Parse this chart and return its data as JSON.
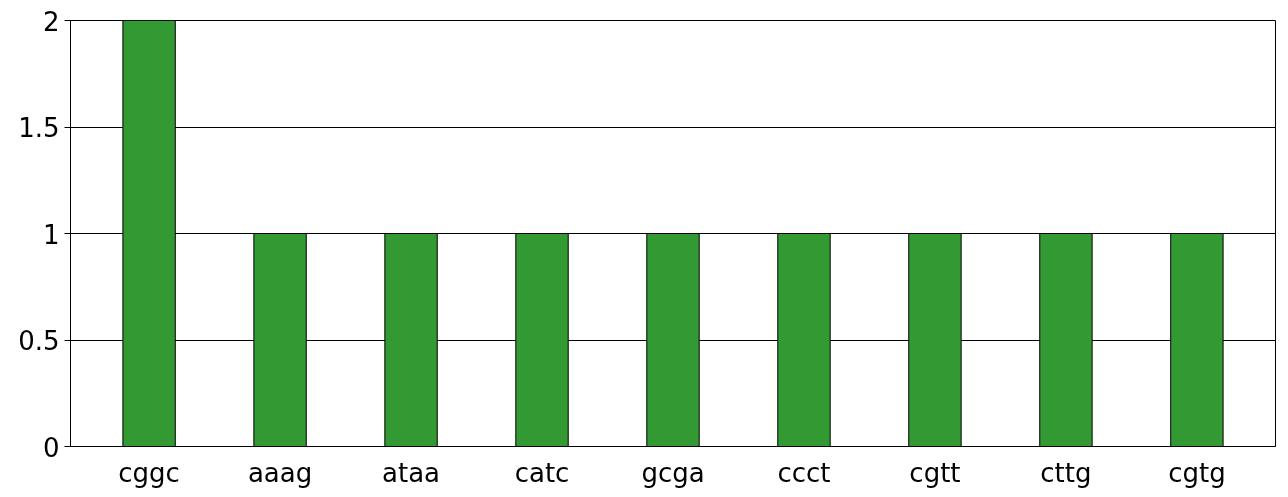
{
  "chart_data": {
    "type": "bar",
    "categories": [
      "cggc",
      "aaag",
      "ataa",
      "catc",
      "gcga",
      "ccct",
      "cgtt",
      "cttg",
      "cgtg"
    ],
    "values": [
      2,
      1,
      1,
      1,
      1,
      1,
      1,
      1,
      1
    ],
    "color": "#339933",
    "ylim": [
      0,
      2
    ],
    "yticks": [
      0,
      0.5,
      1,
      1.5,
      2
    ],
    "grid": "y"
  }
}
